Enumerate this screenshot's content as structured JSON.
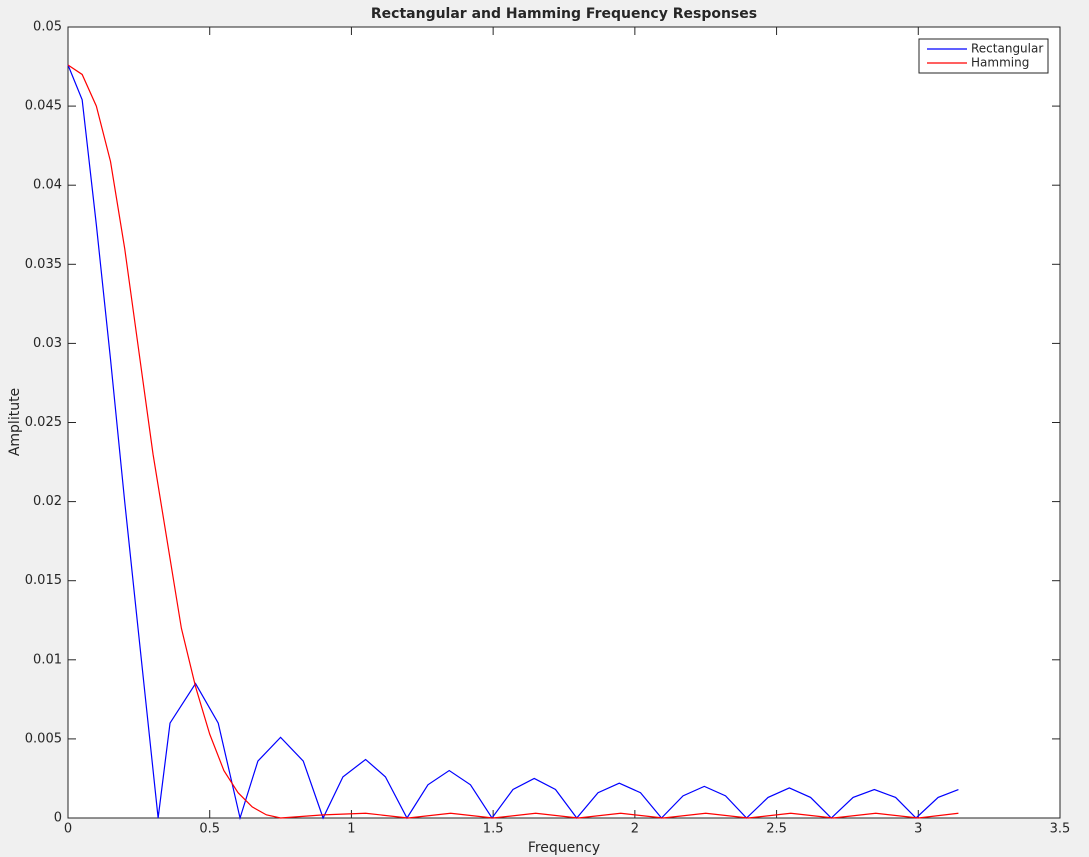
{
  "chart_data": {
    "type": "line",
    "title": "Rectangular and Hamming Frequency Responses",
    "x_label": "Frequency",
    "y_label": "Amplitute",
    "xlim": [
      0,
      3.5
    ],
    "xticks": [
      0,
      0.5,
      1,
      1.5,
      2,
      2.5,
      3,
      3.5
    ],
    "ylim": [
      0,
      0.05
    ],
    "yticks": [
      0,
      0.005,
      0.01,
      0.015,
      0.02,
      0.025,
      0.03,
      0.035,
      0.04,
      0.045,
      0.05
    ],
    "legend": "upper right",
    "series": [
      {
        "name": "Rectangular",
        "color": "#0000ff",
        "x": [
          0,
          0.05,
          0.1,
          0.15,
          0.2,
          0.25,
          0.318,
          0.36,
          0.45,
          0.53,
          0.607,
          0.67,
          0.75,
          0.83,
          0.9,
          0.97,
          1.05,
          1.12,
          1.196,
          1.27,
          1.345,
          1.42,
          1.496,
          1.57,
          1.645,
          1.72,
          1.795,
          1.87,
          1.945,
          2.02,
          2.094,
          2.17,
          2.245,
          2.32,
          2.394,
          2.47,
          2.545,
          2.62,
          2.693,
          2.77,
          2.845,
          2.92,
          2.992,
          3.07,
          3.1416
        ],
        "values": [
          0.0476,
          0.0454,
          0.0375,
          0.029,
          0.02,
          0.0115,
          0,
          0.006,
          0.0085,
          0.006,
          0,
          0.0036,
          0.0051,
          0.0036,
          0,
          0.0026,
          0.0037,
          0.0026,
          0,
          0.0021,
          0.003,
          0.0021,
          0,
          0.0018,
          0.0025,
          0.0018,
          0,
          0.0016,
          0.0022,
          0.0016,
          0,
          0.0014,
          0.002,
          0.0014,
          0,
          0.0013,
          0.0019,
          0.0013,
          0,
          0.0013,
          0.0018,
          0.0013,
          0,
          0.0013,
          0.0018
        ]
      },
      {
        "name": "Hamming",
        "color": "#ff0000",
        "x": [
          0,
          0.05,
          0.1,
          0.15,
          0.2,
          0.25,
          0.3,
          0.35,
          0.4,
          0.45,
          0.5,
          0.55,
          0.6,
          0.65,
          0.7,
          0.75,
          0.9,
          1.05,
          1.2,
          1.35,
          1.5,
          1.65,
          1.8,
          1.95,
          2.1,
          2.25,
          2.4,
          2.55,
          2.7,
          2.85,
          3.0,
          3.1416
        ],
        "values": [
          0.0476,
          0.047,
          0.045,
          0.0415,
          0.036,
          0.0295,
          0.023,
          0.0175,
          0.012,
          0.0083,
          0.0053,
          0.003,
          0.0016,
          0.0007,
          0.0002,
          0,
          0.0002,
          0.0003,
          0,
          0.0003,
          0,
          0.0003,
          0,
          0.0003,
          0,
          0.0003,
          0,
          0.0003,
          0,
          0.0003,
          0,
          0.0003
        ]
      }
    ]
  }
}
